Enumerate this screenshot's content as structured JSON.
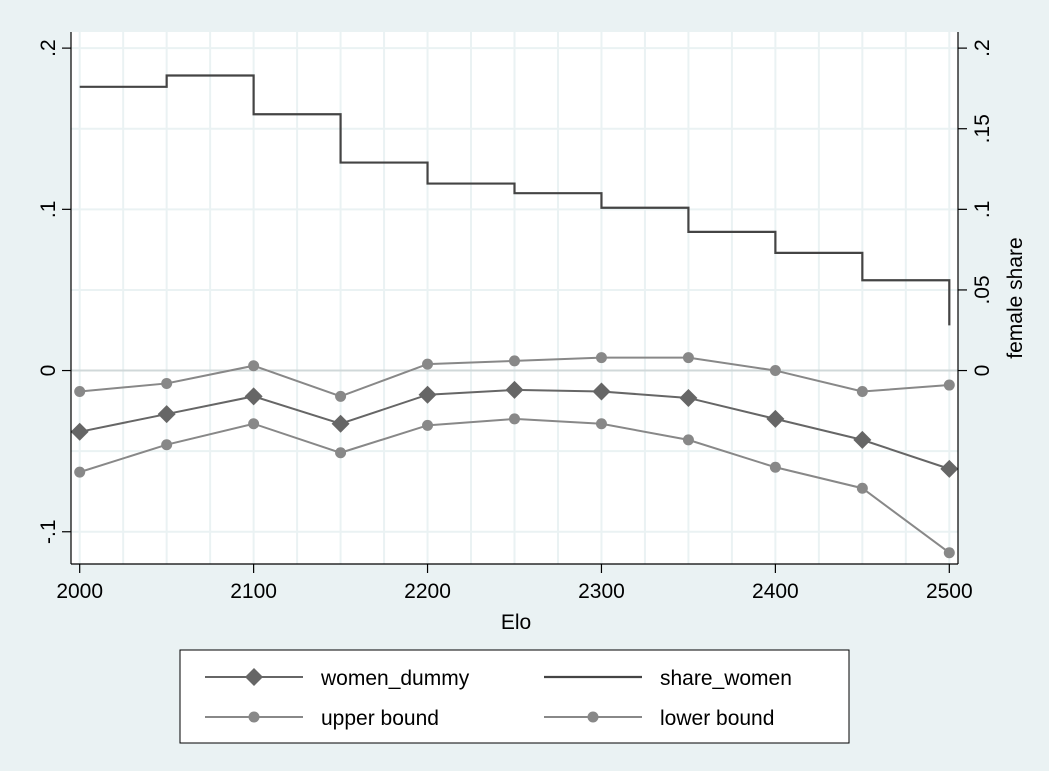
{
  "colors": {
    "background": "#eaf2f3",
    "plot_background": "#ffffff",
    "grid": "#eaf2f3",
    "axis": "#000000",
    "women_dummy": "#666666",
    "share_women": "#444444",
    "bounds": "#888888"
  },
  "chart_data": {
    "type": "line",
    "title": "",
    "xlabel": "Elo",
    "ylabel": "",
    "y2label": "female share",
    "xlim": [
      1995,
      2505
    ],
    "ylim": [
      -0.12,
      0.21
    ],
    "y2lim": [
      -0.12,
      0.21
    ],
    "x_ticks": [
      2000,
      2100,
      2200,
      2300,
      2400,
      2500
    ],
    "x_tick_labels": [
      "2000",
      "2100",
      "2200",
      "2300",
      "2400",
      "2500"
    ],
    "x_minor_gridlines": [
      2025,
      2050,
      2075,
      2125,
      2150,
      2175,
      2225,
      2250,
      2275,
      2325,
      2350,
      2375,
      2425,
      2450,
      2475
    ],
    "y_ticks": [
      -0.1,
      0,
      0.1,
      0.2
    ],
    "y_tick_labels": [
      "-.1",
      "0",
      ".1",
      ".2"
    ],
    "y_minor_gridlines": [
      -0.05,
      0.05,
      0.15
    ],
    "y2_ticks": [
      0,
      0.05,
      0.1,
      0.15,
      0.2
    ],
    "y2_tick_labels": [
      "0",
      ".05",
      ".1",
      ".15",
      ".2"
    ],
    "grid": true,
    "legend_position": "bottom",
    "x": [
      2000,
      2050,
      2100,
      2150,
      2200,
      2250,
      2300,
      2350,
      2400,
      2450,
      2500
    ],
    "series": [
      {
        "name": "women_dummy",
        "axis": "left",
        "marker": "diamond",
        "style": "line",
        "values": [
          -0.038,
          -0.027,
          -0.016,
          -0.033,
          -0.015,
          -0.012,
          -0.013,
          -0.017,
          -0.03,
          -0.043,
          -0.061
        ]
      },
      {
        "name": "share_women",
        "axis": "right",
        "marker": "none",
        "style": "step",
        "values": [
          0.176,
          0.183,
          0.159,
          0.129,
          0.116,
          0.11,
          0.101,
          0.086,
          0.073,
          0.056,
          0.028
        ]
      },
      {
        "name": "upper bound",
        "axis": "left",
        "marker": "circle",
        "style": "line",
        "values": [
          -0.013,
          -0.008,
          0.003,
          -0.016,
          0.004,
          0.006,
          0.008,
          0.008,
          0.0,
          -0.013,
          -0.009
        ]
      },
      {
        "name": "lower bound",
        "axis": "left",
        "marker": "circle",
        "style": "line",
        "values": [
          -0.063,
          -0.046,
          -0.033,
          -0.051,
          -0.034,
          -0.03,
          -0.033,
          -0.043,
          -0.06,
          -0.073,
          -0.113
        ]
      }
    ],
    "legend": {
      "items": [
        {
          "label": "women_dummy",
          "series": 0
        },
        {
          "label": "share_women",
          "series": 1
        },
        {
          "label": "upper bound",
          "series": 2
        },
        {
          "label": "lower bound",
          "series": 3
        }
      ]
    }
  }
}
